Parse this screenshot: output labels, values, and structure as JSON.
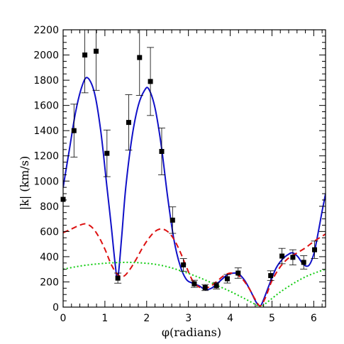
{
  "chart_data": {
    "type": "scatter",
    "xlabel": "φ(radians)",
    "ylabel": "|k| (km/s)",
    "xlim": [
      0,
      6.283
    ],
    "ylim": [
      0,
      2200
    ],
    "xticks": [
      0,
      1,
      2,
      3,
      4,
      5,
      6
    ],
    "yticks": [
      0,
      200,
      400,
      600,
      800,
      1000,
      1200,
      1400,
      1600,
      1800,
      2000,
      2200
    ],
    "xtick_labels": [
      "0",
      "1",
      "2",
      "3",
      "4",
      "5",
      "6"
    ],
    "ytick_labels": [
      "0",
      "200",
      "400",
      "600",
      "800",
      "1000",
      "1200",
      "1400",
      "1600",
      "1800",
      "2000",
      "2200"
    ],
    "points": [
      {
        "x": 0.0,
        "y": 855,
        "err": 0
      },
      {
        "x": 0.26,
        "y": 1400,
        "err": 210
      },
      {
        "x": 0.52,
        "y": 2000,
        "err": 300
      },
      {
        "x": 0.79,
        "y": 2030,
        "err": 310
      },
      {
        "x": 1.05,
        "y": 1220,
        "err": 185
      },
      {
        "x": 1.31,
        "y": 230,
        "err": 40
      },
      {
        "x": 1.57,
        "y": 1465,
        "err": 220
      },
      {
        "x": 1.83,
        "y": 1980,
        "err": 300
      },
      {
        "x": 2.09,
        "y": 1790,
        "err": 270
      },
      {
        "x": 2.36,
        "y": 1235,
        "err": 185
      },
      {
        "x": 2.62,
        "y": 690,
        "err": 105
      },
      {
        "x": 2.88,
        "y": 335,
        "err": 50
      },
      {
        "x": 3.14,
        "y": 185,
        "err": 28
      },
      {
        "x": 3.4,
        "y": 155,
        "err": 24
      },
      {
        "x": 3.67,
        "y": 170,
        "err": 26
      },
      {
        "x": 3.93,
        "y": 225,
        "err": 34
      },
      {
        "x": 4.19,
        "y": 270,
        "err": 41
      },
      {
        "x": 4.97,
        "y": 250,
        "err": 38
      },
      {
        "x": 5.24,
        "y": 405,
        "err": 61
      },
      {
        "x": 5.5,
        "y": 395,
        "err": 60
      },
      {
        "x": 5.76,
        "y": 355,
        "err": 53
      },
      {
        "x": 6.02,
        "y": 455,
        "err": 69
      }
    ],
    "series": [
      {
        "style": "solid",
        "color": "#1010c8",
        "x": [
          0.0,
          0.15,
          0.3,
          0.45,
          0.58,
          0.75,
          0.9,
          1.05,
          1.15,
          1.25,
          1.31,
          1.4,
          1.5,
          1.65,
          1.8,
          1.95,
          2.05,
          2.2,
          2.35,
          2.5,
          2.65,
          2.8,
          2.95,
          3.1,
          3.25,
          3.4,
          3.55,
          3.7,
          3.8,
          3.95,
          4.1,
          4.2,
          4.35,
          4.5,
          4.62,
          4.72,
          4.8,
          4.95,
          5.1,
          5.25,
          5.4,
          5.5,
          5.62,
          5.75,
          5.88,
          6.0,
          6.1,
          6.2,
          6.283
        ],
        "y": [
          950,
          1250,
          1550,
          1750,
          1820,
          1700,
          1400,
          950,
          650,
          330,
          230,
          550,
          950,
          1350,
          1600,
          1720,
          1730,
          1580,
          1280,
          880,
          540,
          330,
          220,
          190,
          170,
          140,
          150,
          190,
          220,
          260,
          270,
          265,
          210,
          120,
          40,
          10,
          60,
          190,
          310,
          380,
          420,
          430,
          400,
          340,
          330,
          420,
          580,
          760,
          900
        ]
      },
      {
        "style": "dashed",
        "color": "#dd1111",
        "x": [
          0.0,
          0.2,
          0.4,
          0.55,
          0.7,
          0.85,
          1.0,
          1.15,
          1.3,
          1.45,
          1.6,
          1.75,
          1.9,
          2.05,
          2.2,
          2.35,
          2.5,
          2.65,
          2.8,
          2.95,
          3.1,
          3.25,
          3.4,
          3.55,
          3.7,
          3.85,
          4.0,
          4.15,
          4.3,
          4.45,
          4.6,
          4.72,
          4.85,
          5.0,
          5.2,
          5.4,
          5.6,
          5.8,
          6.0,
          6.283
        ],
        "y": [
          590,
          620,
          650,
          660,
          630,
          560,
          460,
          340,
          260,
          245,
          300,
          380,
          470,
          545,
          600,
          620,
          600,
          540,
          440,
          320,
          210,
          160,
          150,
          170,
          210,
          250,
          270,
          260,
          220,
          150,
          60,
          10,
          80,
          210,
          320,
          390,
          430,
          470,
          520,
          580
        ]
      },
      {
        "style": "dotted",
        "color": "#11cc11",
        "x": [
          0.0,
          0.3,
          0.6,
          0.9,
          1.2,
          1.57,
          1.9,
          2.2,
          2.5,
          2.8,
          3.1,
          3.4,
          3.7,
          4.0,
          4.3,
          4.5,
          4.65,
          4.712,
          4.78,
          4.95,
          5.2,
          5.5,
          5.8,
          6.1,
          6.283
        ],
        "y": [
          300,
          320,
          335,
          345,
          352,
          355,
          350,
          340,
          320,
          290,
          255,
          215,
          170,
          125,
          75,
          40,
          12,
          0,
          12,
          55,
          120,
          185,
          240,
          280,
          300
        ]
      }
    ]
  }
}
